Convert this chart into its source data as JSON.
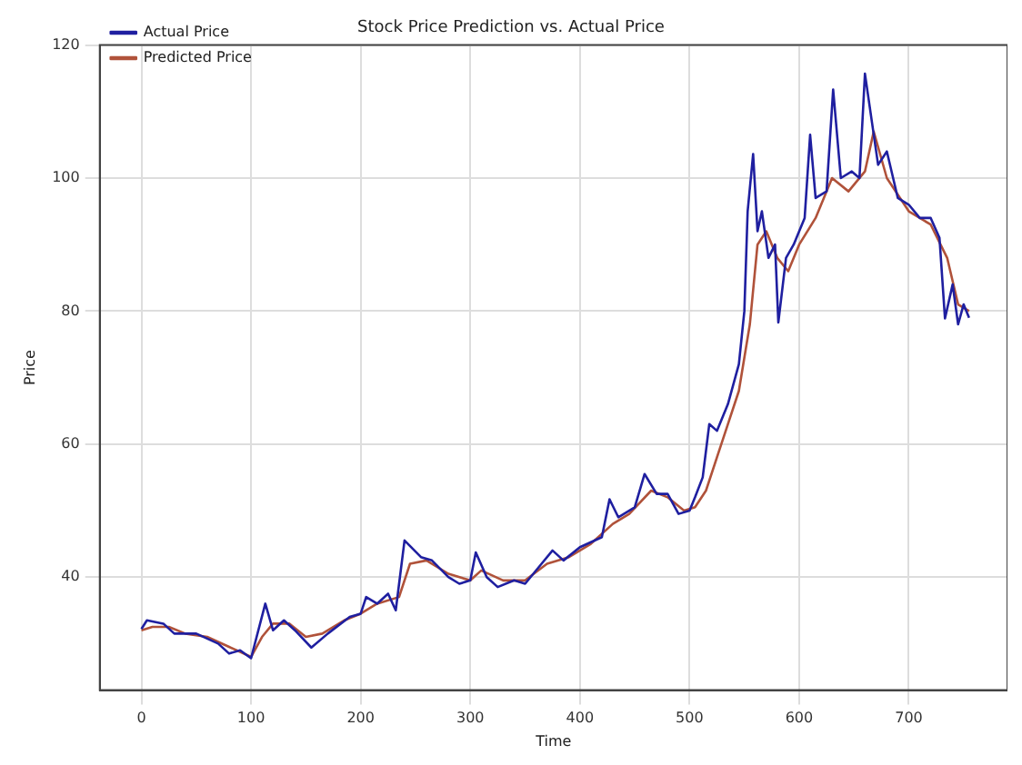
{
  "chart_data": {
    "type": "line",
    "title": "Stock Price Prediction vs. Actual Price",
    "xlabel": "Time",
    "ylabel": "Price",
    "xlim": [
      -38,
      790
    ],
    "xticks": [
      0,
      100,
      200,
      300,
      400,
      500,
      600,
      700
    ],
    "ylim": [
      23,
      120
    ],
    "yticks": [
      40,
      60,
      80,
      100,
      120
    ],
    "grid": true,
    "legend": "top left",
    "marker": "none",
    "line_style": "solid",
    "series": [
      {
        "name": "Actual Price",
        "color": "#1f1fa0",
        "x": [
          0,
          5,
          20,
          30,
          50,
          70,
          80,
          90,
          100,
          113,
          120,
          130,
          140,
          155,
          170,
          190,
          200,
          205,
          215,
          225,
          232,
          240,
          255,
          265,
          280,
          290,
          300,
          305,
          315,
          325,
          340,
          350,
          365,
          375,
          385,
          400,
          420,
          427,
          435,
          450,
          459,
          470,
          480,
          490,
          500,
          505,
          512,
          518,
          525,
          535,
          540,
          545,
          550,
          553,
          558,
          562,
          566,
          572,
          578,
          581,
          588,
          595,
          605,
          610,
          615,
          625,
          631,
          638,
          648,
          655,
          660,
          672,
          680,
          690,
          700,
          710,
          720,
          728,
          733,
          740,
          745,
          750,
          755
        ],
        "values": [
          32.2,
          33.5,
          33,
          31.5,
          31.5,
          30,
          28.5,
          29,
          27.8,
          36,
          32,
          33.5,
          32,
          29.4,
          31.5,
          34,
          34.5,
          37,
          36,
          37.5,
          35,
          45.5,
          43,
          42.5,
          40,
          39,
          39.5,
          43.7,
          40,
          38.5,
          39.5,
          39,
          42,
          44,
          42.5,
          44.5,
          46,
          51.7,
          49,
          50.5,
          55.5,
          52.5,
          52.5,
          49.5,
          50,
          52,
          55,
          63,
          62,
          66,
          69,
          72,
          80,
          95,
          103.6,
          92,
          95,
          88,
          90,
          78.3,
          88,
          90,
          94,
          106.5,
          97,
          98,
          113.3,
          100,
          101,
          100,
          115.7,
          102,
          104,
          97,
          96,
          94,
          94,
          91,
          78.9,
          84,
          78,
          81,
          79
        ]
      },
      {
        "name": "Predicted Price",
        "color": "#b0523a",
        "x": [
          0,
          10,
          25,
          40,
          60,
          80,
          100,
          110,
          120,
          135,
          150,
          165,
          185,
          200,
          215,
          235,
          245,
          260,
          280,
          300,
          310,
          330,
          350,
          370,
          390,
          410,
          430,
          445,
          465,
          480,
          495,
          505,
          515,
          525,
          535,
          545,
          555,
          562,
          570,
          580,
          590,
          600,
          615,
          630,
          645,
          660,
          668,
          680,
          700,
          720,
          735,
          745,
          755
        ],
        "values": [
          32,
          32.5,
          32.5,
          31.5,
          31,
          29.5,
          28,
          31,
          33,
          33,
          31,
          31.5,
          33.5,
          34.5,
          36,
          37,
          42,
          42.5,
          40.5,
          39.5,
          41,
          39.5,
          39.5,
          42,
          43,
          45,
          48,
          49.5,
          53,
          52,
          50,
          50.5,
          53,
          58,
          63,
          68,
          78,
          90,
          92,
          88,
          86,
          90,
          94,
          100,
          98,
          101,
          107,
          100,
          95,
          93,
          88,
          81,
          80
        ]
      }
    ]
  }
}
